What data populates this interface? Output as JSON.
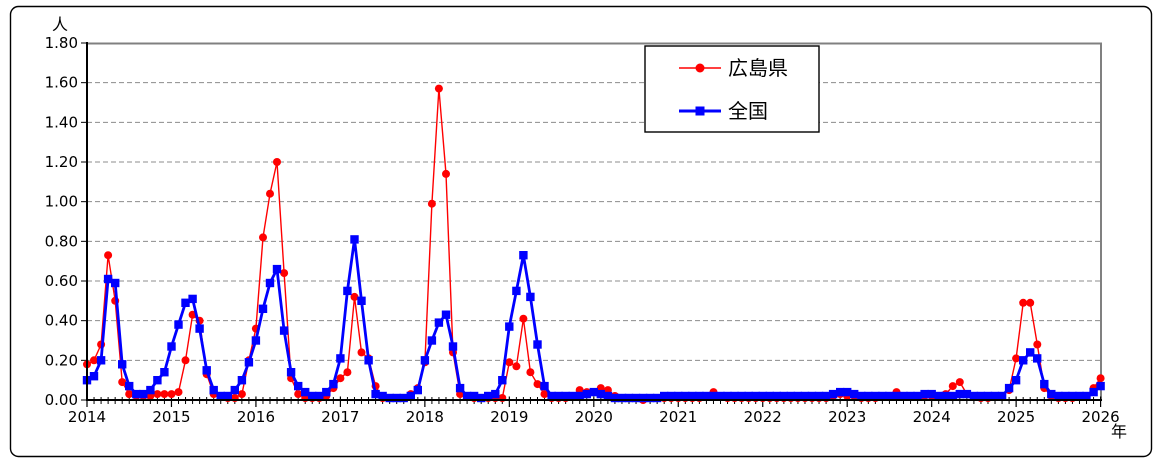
{
  "chart_data": {
    "type": "line",
    "title": "",
    "y_unit_label": "人",
    "x_unit_label": "年",
    "ylim": [
      0,
      1.8
    ],
    "y_tick_step": 0.2,
    "y_tick_labels": [
      "0.00",
      "0.20",
      "0.40",
      "0.60",
      "0.80",
      "1.00",
      "1.20",
      "1.40",
      "1.60",
      "1.80"
    ],
    "x_tick_years": [
      "2014",
      "2015",
      "2016",
      "2017",
      "2018",
      "2019",
      "2020",
      "2021",
      "2022",
      "2023",
      "2024",
      "2025",
      "2026"
    ],
    "x_frequency": "monthly",
    "x_start": "2014-01",
    "x_end": "2026-01",
    "grid": "horizontal-dashed",
    "legend_position": "top-center-inside",
    "colors": {
      "hiroshima": "#ff0000",
      "national": "#0000ff",
      "grid": "#8c8c8c",
      "plot_border": "#808080",
      "axis": "#000000"
    },
    "series": [
      {
        "id": "hiroshima",
        "name": "広島県",
        "color": "#ff0000",
        "marker": "circle",
        "values": [
          0.18,
          0.2,
          0.28,
          0.73,
          0.5,
          0.09,
          0.03,
          0.02,
          0.02,
          0.02,
          0.03,
          0.03,
          0.03,
          0.04,
          0.2,
          0.43,
          0.4,
          0.13,
          0.03,
          0.02,
          0.01,
          0.01,
          0.03,
          0.2,
          0.36,
          0.82,
          1.04,
          1.2,
          0.64,
          0.11,
          0.03,
          0.01,
          0.01,
          0.01,
          0.02,
          0.06,
          0.11,
          0.14,
          0.52,
          0.24,
          0.21,
          0.07,
          0.01,
          0.01,
          0.01,
          0.01,
          0.03,
          0.06,
          0.19,
          0.99,
          1.57,
          1.14,
          0.24,
          0.03,
          0.02,
          0.01,
          0.01,
          0.01,
          0.01,
          0.01,
          0.19,
          0.17,
          0.41,
          0.14,
          0.08,
          0.03,
          0.01,
          0.01,
          0.01,
          0.02,
          0.05,
          0.04,
          0.04,
          0.06,
          0.05,
          0.02,
          0.01,
          0.01,
          0.01,
          0.0,
          0.01,
          0.01,
          0.01,
          0.01,
          0.01,
          0.01,
          0.01,
          0.01,
          0.02,
          0.04,
          0.02,
          0.01,
          0.01,
          0.01,
          0.01,
          0.01,
          0.01,
          0.01,
          0.01,
          0.01,
          0.01,
          0.01,
          0.01,
          0.01,
          0.01,
          0.01,
          0.02,
          0.03,
          0.02,
          0.02,
          0.01,
          0.01,
          0.01,
          0.02,
          0.02,
          0.04,
          0.02,
          0.02,
          0.02,
          0.02,
          0.02,
          0.02,
          0.03,
          0.07,
          0.09,
          0.03,
          0.02,
          0.01,
          0.01,
          0.02,
          0.02,
          0.05,
          0.21,
          0.49,
          0.49,
          0.28,
          0.06,
          0.02,
          0.01,
          0.01,
          0.01,
          0.02,
          0.02,
          0.06,
          0.11
        ]
      },
      {
        "id": "national",
        "name": "全国",
        "color": "#0000ff",
        "marker": "square",
        "values": [
          0.1,
          0.12,
          0.2,
          0.61,
          0.59,
          0.18,
          0.07,
          0.03,
          0.03,
          0.05,
          0.1,
          0.14,
          0.27,
          0.38,
          0.49,
          0.51,
          0.36,
          0.15,
          0.05,
          0.02,
          0.02,
          0.05,
          0.1,
          0.19,
          0.3,
          0.46,
          0.59,
          0.66,
          0.35,
          0.14,
          0.07,
          0.04,
          0.02,
          0.02,
          0.04,
          0.08,
          0.21,
          0.55,
          0.81,
          0.5,
          0.2,
          0.03,
          0.02,
          0.01,
          0.01,
          0.01,
          0.02,
          0.05,
          0.2,
          0.3,
          0.39,
          0.43,
          0.27,
          0.06,
          0.02,
          0.02,
          0.01,
          0.02,
          0.03,
          0.1,
          0.37,
          0.55,
          0.73,
          0.52,
          0.28,
          0.07,
          0.02,
          0.02,
          0.02,
          0.02,
          0.02,
          0.03,
          0.04,
          0.03,
          0.02,
          0.01,
          0.01,
          0.01,
          0.01,
          0.01,
          0.01,
          0.01,
          0.02,
          0.02,
          0.02,
          0.02,
          0.02,
          0.02,
          0.02,
          0.02,
          0.02,
          0.02,
          0.02,
          0.02,
          0.02,
          0.02,
          0.02,
          0.02,
          0.02,
          0.02,
          0.02,
          0.02,
          0.02,
          0.02,
          0.02,
          0.02,
          0.03,
          0.04,
          0.04,
          0.03,
          0.02,
          0.02,
          0.02,
          0.02,
          0.02,
          0.02,
          0.02,
          0.02,
          0.02,
          0.03,
          0.03,
          0.02,
          0.02,
          0.02,
          0.03,
          0.03,
          0.02,
          0.02,
          0.02,
          0.02,
          0.02,
          0.06,
          0.1,
          0.2,
          0.24,
          0.21,
          0.08,
          0.03,
          0.02,
          0.02,
          0.02,
          0.02,
          0.02,
          0.04,
          0.07
        ]
      }
    ]
  }
}
